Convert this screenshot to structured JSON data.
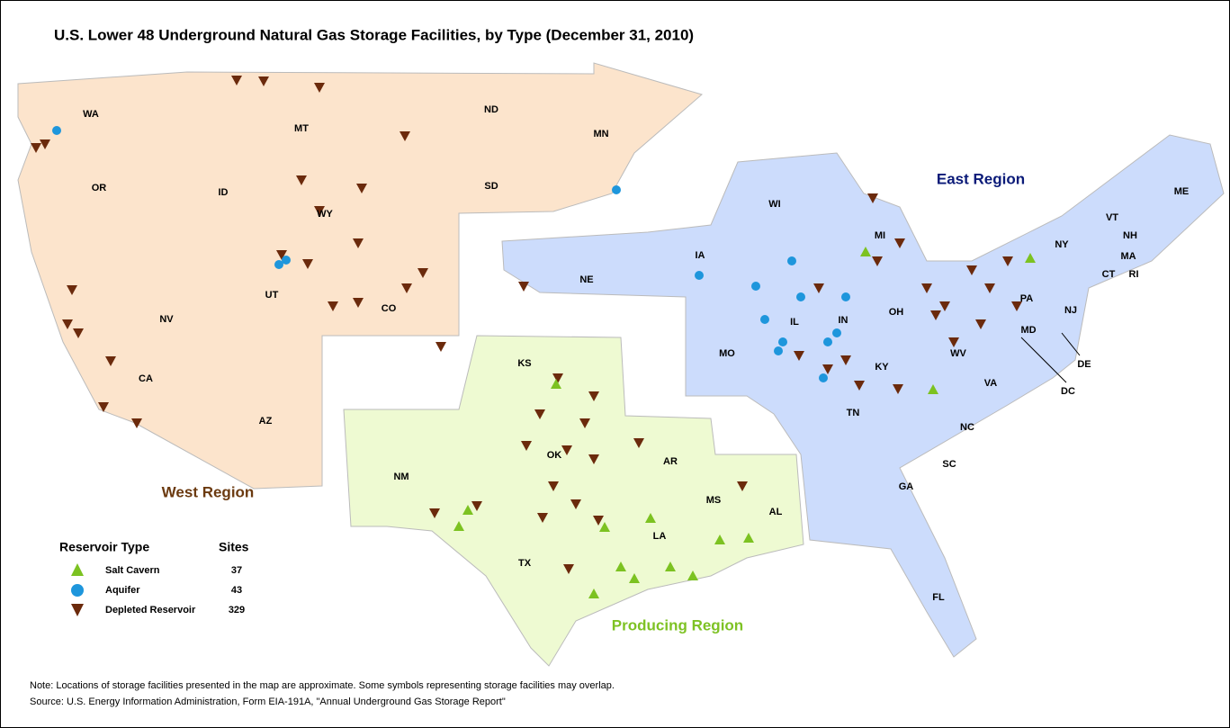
{
  "title": "U.S. Lower 48 Underground Natural Gas Storage Facilities, by Type (December 31, 2010)",
  "regions": [
    {
      "label": "West Region"
    },
    {
      "label": "East Region"
    },
    {
      "label": "Producing Region"
    }
  ],
  "states": [
    "WA",
    "OR",
    "ID",
    "MT",
    "WY",
    "ND",
    "SD",
    "MN",
    "NV",
    "UT",
    "CO",
    "CA",
    "AZ",
    "NE",
    "IA",
    "KS",
    "OK",
    "NM",
    "TX",
    "AR",
    "LA",
    "MS",
    "AL",
    "WI",
    "MI",
    "IL",
    "IN",
    "OH",
    "KY",
    "TN",
    "MO",
    "WV",
    "VA",
    "NC",
    "SC",
    "GA",
    "FL",
    "PA",
    "NY",
    "MD",
    "DE",
    "DC",
    "NJ",
    "CT",
    "RI",
    "MA",
    "NH",
    "VT",
    "ME"
  ],
  "legend": {
    "header": [
      "Reservoir Type",
      "Sites"
    ],
    "rows": [
      {
        "type": "Salt Cavern",
        "sites": 37
      },
      {
        "type": "Aquifer",
        "sites": 43
      },
      {
        "type": "Depleted Reservoir",
        "sites": 329
      }
    ]
  },
  "notes": [
    "Note: Locations of storage facilities presented in the map are approximate.  Some symbols representing storage facilities may overlap.",
    "Source: U.S. Energy Information Administration, Form EIA-191A, \"Annual Underground Gas Storage Report\""
  ]
}
